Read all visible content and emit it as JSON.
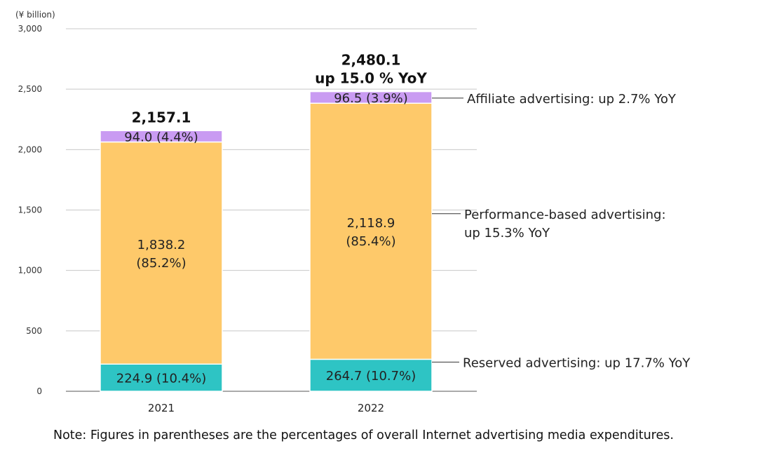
{
  "chart_data": {
    "type": "bar",
    "stacked": true,
    "unit_label": "(¥ billion)",
    "categories": [
      "2021",
      "2022"
    ],
    "ylim": [
      0,
      3000
    ],
    "yticks": [
      0,
      500,
      1000,
      1500,
      2000,
      2500,
      3000
    ],
    "ytick_labels": [
      "0",
      "500",
      "1,000",
      "1,500",
      "2,000",
      "2,500",
      "3,000"
    ],
    "grid": true,
    "series": [
      {
        "key": "reserved",
        "color": "#2ec4c4",
        "values": [
          224.9,
          264.7
        ],
        "labels": [
          "224.9 (10.4%)",
          "264.7 (10.7%)"
        ],
        "legend": [
          "Reserved advertising: up 17.7% YoY"
        ]
      },
      {
        "key": "performance",
        "color": "#fec96a",
        "values": [
          1838.2,
          2118.9
        ],
        "labels": [
          [
            "1,838.2",
            "(85.2%)"
          ],
          [
            "2,118.9",
            "(85.4%)"
          ]
        ],
        "legend": [
          "Performance-based advertising:",
          "up 15.3% YoY"
        ]
      },
      {
        "key": "affiliate",
        "color": "#c99bf2",
        "values": [
          94.0,
          96.5
        ],
        "labels": [
          "94.0 (4.4%)",
          "96.5 (3.9%)"
        ],
        "legend": [
          "Affiliate advertising: up 2.7% YoY"
        ]
      }
    ],
    "totals": [
      [
        "2,157.1"
      ],
      [
        "2,480.1",
        "up 15.0 % YoY"
      ]
    ]
  },
  "note": "Note: Figures in parentheses are the percentages of overall Internet advertising media expenditures."
}
